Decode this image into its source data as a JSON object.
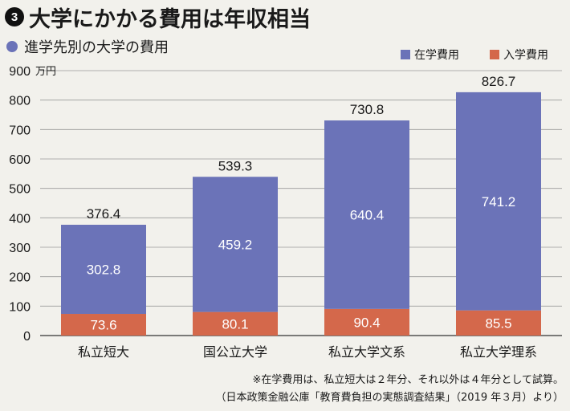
{
  "header": {
    "badge": "3",
    "title": "大学にかかる費用は年収相当"
  },
  "subtitle": "進学先別の大学の費用",
  "notes": {
    "line1": "※在学費用は、私立短大は２年分、それ以外は４年分として試算。",
    "line2": "（日本政策金融公庫「教育費負担の実態調査結果」（2019 年３月）より）"
  },
  "colors": {
    "zaigaku": "#6b73b8",
    "nyugaku": "#d4684b"
  },
  "chart_data": {
    "type": "bar",
    "stacked": true,
    "title": "進学先別の大学の費用",
    "categories": [
      "私立短大",
      "国公立大学",
      "私立大学文系",
      "私立大学理系"
    ],
    "series": [
      {
        "name": "入学費用",
        "values": [
          73.6,
          80.1,
          90.4,
          85.5
        ]
      },
      {
        "name": "在学費用",
        "values": [
          302.8,
          459.2,
          640.4,
          741.2
        ]
      }
    ],
    "totals": [
      376.4,
      539.3,
      730.8,
      826.7
    ],
    "total_labels": [
      "376.4",
      "539.3",
      "730.8",
      "826.7"
    ],
    "yunit": "万円",
    "yticks": [
      0,
      100,
      200,
      300,
      400,
      500,
      600,
      700,
      800,
      900
    ],
    "ylim": [
      0,
      900
    ],
    "grid": true,
    "legend": [
      "在学費用",
      "入学費用"
    ],
    "legend_position": "top-right"
  }
}
